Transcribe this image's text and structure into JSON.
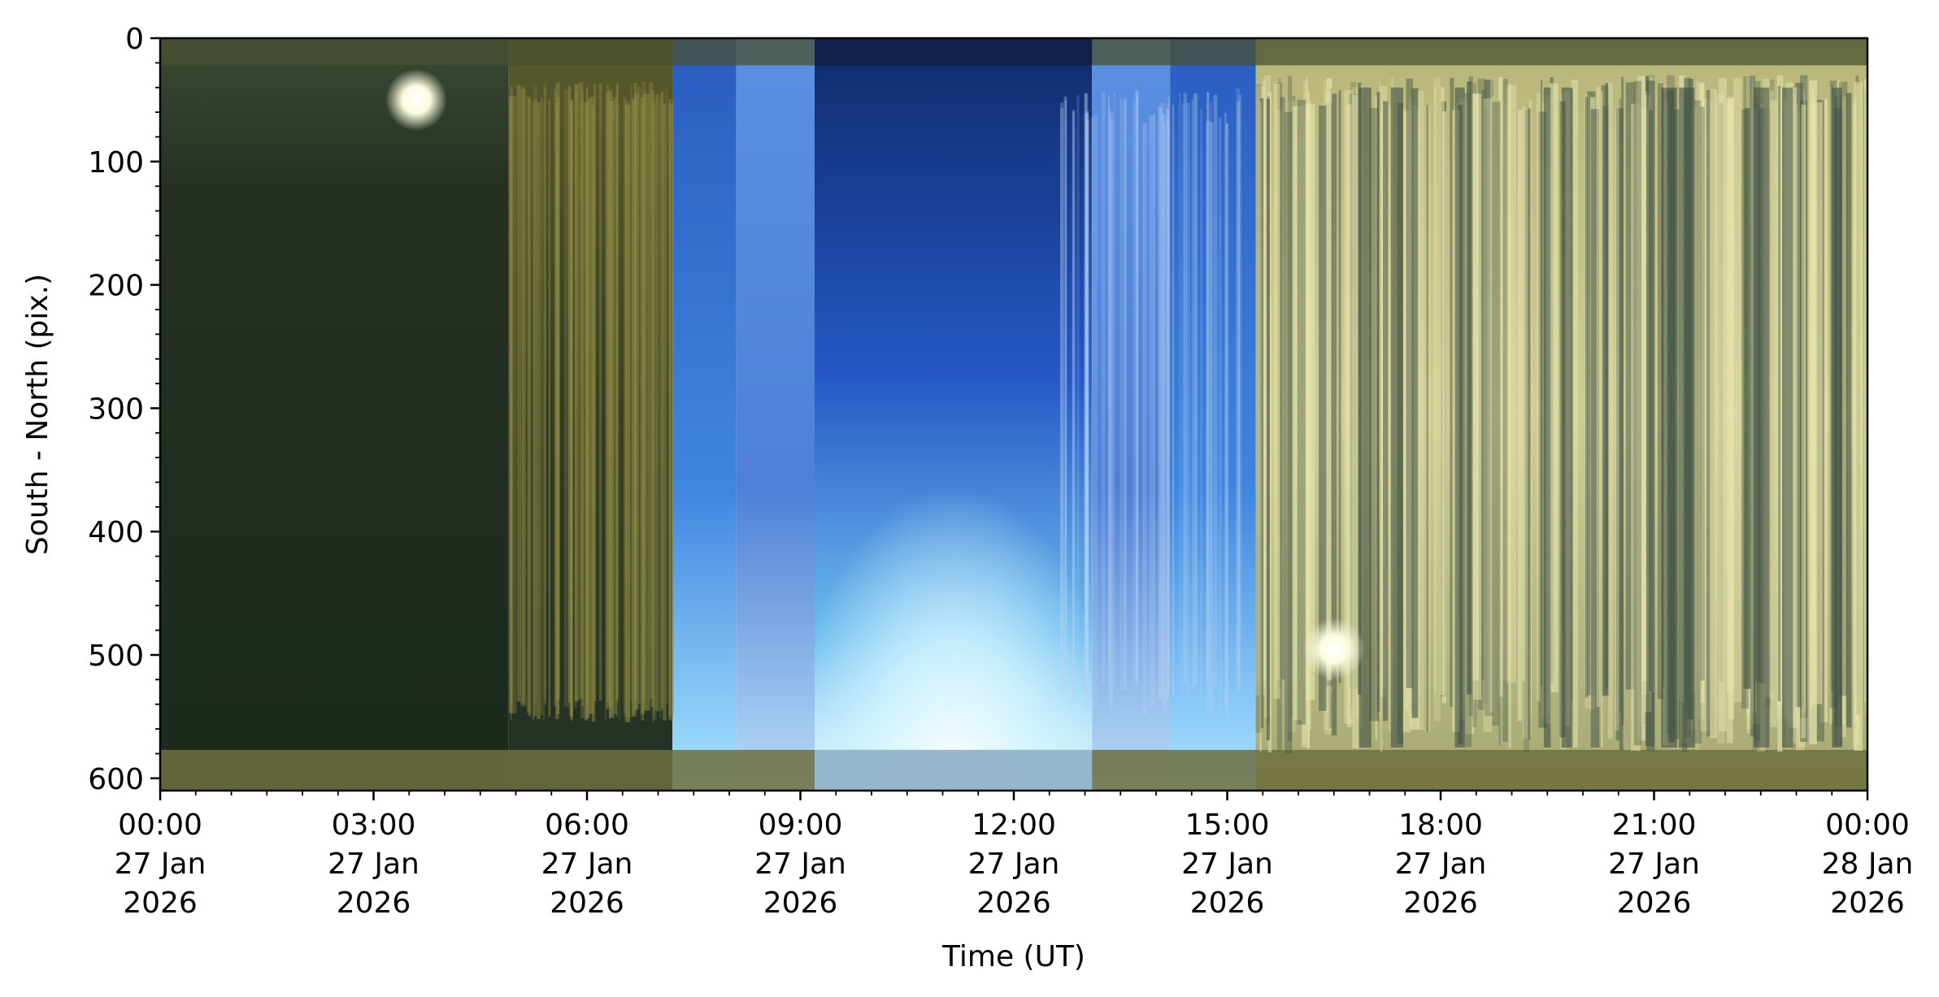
{
  "chart_data": {
    "type": "heatmap",
    "title": "",
    "xlabel": "Time (UT)",
    "ylabel": "South - North (pix.)",
    "xlim_hours": [
      0,
      24
    ],
    "ylim": [
      610,
      0
    ],
    "x_ticks": [
      {
        "hour": 0,
        "lines": [
          "00:00",
          "27 Jan",
          "2026"
        ]
      },
      {
        "hour": 3,
        "lines": [
          "03:00",
          "27 Jan",
          "2026"
        ]
      },
      {
        "hour": 6,
        "lines": [
          "06:00",
          "27 Jan",
          "2026"
        ]
      },
      {
        "hour": 9,
        "lines": [
          "09:00",
          "27 Jan",
          "2026"
        ]
      },
      {
        "hour": 12,
        "lines": [
          "12:00",
          "27 Jan",
          "2026"
        ]
      },
      {
        "hour": 15,
        "lines": [
          "15:00",
          "27 Jan",
          "2026"
        ]
      },
      {
        "hour": 18,
        "lines": [
          "18:00",
          "27 Jan",
          "2026"
        ]
      },
      {
        "hour": 21,
        "lines": [
          "21:00",
          "27 Jan",
          "2026"
        ]
      },
      {
        "hour": 24,
        "lines": [
          "00:00",
          "28 Jan",
          "2026"
        ]
      }
    ],
    "y_ticks": [
      0,
      100,
      200,
      300,
      400,
      500,
      600
    ],
    "grid": false,
    "colors": {
      "night": "#1f2a1c",
      "night_glow": "#3a3f24",
      "twilight": "#3a6fd0",
      "day_top": "#0f2a6a",
      "day_mid": "#2f6dd8",
      "day_bottom": "#cdf2ff",
      "cloud": "#c9c88a",
      "cloud_dark": "#3f5040",
      "sun": "#fbfbe0"
    },
    "bands": [
      {
        "start": 0,
        "end": 4.9,
        "kind": "night"
      },
      {
        "start": 4.9,
        "end": 7.2,
        "kind": "night_glow"
      },
      {
        "start": 7.2,
        "end": 8.1,
        "kind": "twilight"
      },
      {
        "start": 8.1,
        "end": 9.2,
        "kind": "twilight"
      },
      {
        "start": 9.2,
        "end": 13.1,
        "kind": "day"
      },
      {
        "start": 13.1,
        "end": 14.2,
        "kind": "twilight"
      },
      {
        "start": 14.2,
        "end": 15.4,
        "kind": "twilight"
      },
      {
        "start": 15.4,
        "end": 24,
        "kind": "cloud"
      }
    ],
    "features": [
      {
        "kind": "sun",
        "hour": 3.6,
        "y": 50
      },
      {
        "kind": "sun",
        "hour": 16.5,
        "y": 495
      }
    ]
  }
}
